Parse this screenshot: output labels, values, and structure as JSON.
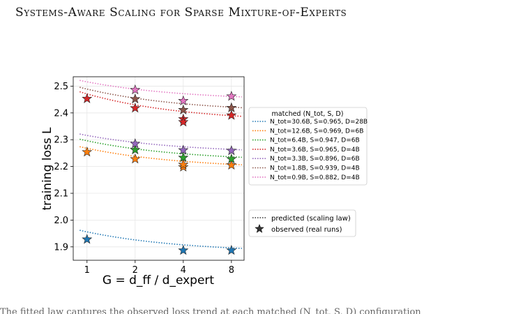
{
  "header": {
    "title": "Systems-Aware Scaling for Sparse Mixture-of-Experts"
  },
  "chart_data": {
    "type": "scatter",
    "xlabel": "G = d_ff / d_expert",
    "ylabel": "training loss L",
    "x_scale": "log2",
    "x_ticks": [
      1,
      2,
      4,
      8
    ],
    "y_ticks": [
      1.9,
      2.0,
      2.1,
      2.2,
      2.3,
      2.4,
      2.5
    ],
    "xlim": [
      0.82,
      9.6
    ],
    "ylim": [
      1.85,
      2.535
    ],
    "grid": true,
    "legend_placement": "right",
    "legend_title": "matched (N_tot, S, D)",
    "series": [
      {
        "name": "N_tot=30.6B, S=0.965, D=28B",
        "color": "#1f77b4",
        "observed": [
          {
            "x": 1,
            "y": 1.928
          },
          {
            "x": 4,
            "y": 1.887
          },
          {
            "x": 8,
            "y": 1.887
          }
        ],
        "fit": {
          "a": 1.878,
          "b": 0.078,
          "c": 0.7
        }
      },
      {
        "name": "N_tot=12.6B, S=0.969, D=6B",
        "color": "#ff7f0e",
        "observed": [
          {
            "x": 1,
            "y": 2.254
          },
          {
            "x": 2,
            "y": 2.228
          },
          {
            "x": 4,
            "y": 2.198
          },
          {
            "x": 4,
            "y": 2.207
          },
          {
            "x": 8,
            "y": 2.205
          }
        ],
        "fit": {
          "a": 2.19,
          "b": 0.078,
          "c": 0.7
        }
      },
      {
        "name": "N_tot=6.4B, S=0.947, D=6B",
        "color": "#2ca02c",
        "observed": [
          {
            "x": 2,
            "y": 2.262
          },
          {
            "x": 4,
            "y": 2.233
          },
          {
            "x": 8,
            "y": 2.228
          }
        ],
        "fit": {
          "a": 2.218,
          "b": 0.078,
          "c": 0.7
        }
      },
      {
        "name": "N_tot=3.6B, S=0.965, D=4B",
        "color": "#d62728",
        "observed": [
          {
            "x": 1,
            "y": 2.453
          },
          {
            "x": 2,
            "y": 2.418
          },
          {
            "x": 4,
            "y": 2.377
          },
          {
            "x": 4,
            "y": 2.366
          },
          {
            "x": 8,
            "y": 2.391
          }
        ],
        "fit": {
          "a": 2.365,
          "b": 0.106,
          "c": 0.7
        }
      },
      {
        "name": "N_tot=3.3B, S=0.896, D=6B",
        "color": "#9467bd",
        "observed": [
          {
            "x": 2,
            "y": 2.285
          },
          {
            "x": 4,
            "y": 2.261
          },
          {
            "x": 8,
            "y": 2.259
          }
        ],
        "fit": {
          "a": 2.248,
          "b": 0.068,
          "c": 0.7
        }
      },
      {
        "name": "N_tot=1.8B, S=0.939, D=4B",
        "color": "#8c564b",
        "observed": [
          {
            "x": 2,
            "y": 2.452
          },
          {
            "x": 4,
            "y": 2.411
          },
          {
            "x": 8,
            "y": 2.419
          }
        ],
        "fit": {
          "a": 2.401,
          "b": 0.088,
          "c": 0.7
        }
      },
      {
        "name": "N_tot=0.9B, S=0.882, D=4B",
        "color": "#e377c2",
        "observed": [
          {
            "x": 2,
            "y": 2.486
          },
          {
            "x": 4,
            "y": 2.445
          },
          {
            "x": 8,
            "y": 2.462
          }
        ],
        "fit": {
          "a": 2.445,
          "b": 0.071,
          "c": 0.7
        }
      }
    ],
    "style_legend": [
      {
        "marker": "dotted-line",
        "label": "predicted (scaling law)"
      },
      {
        "marker": "star",
        "label": "observed (real runs)"
      }
    ]
  },
  "footer": {
    "cut_text": "The fitted law captures the observed loss trend at each matched (N_tot, S, D) configuration"
  }
}
